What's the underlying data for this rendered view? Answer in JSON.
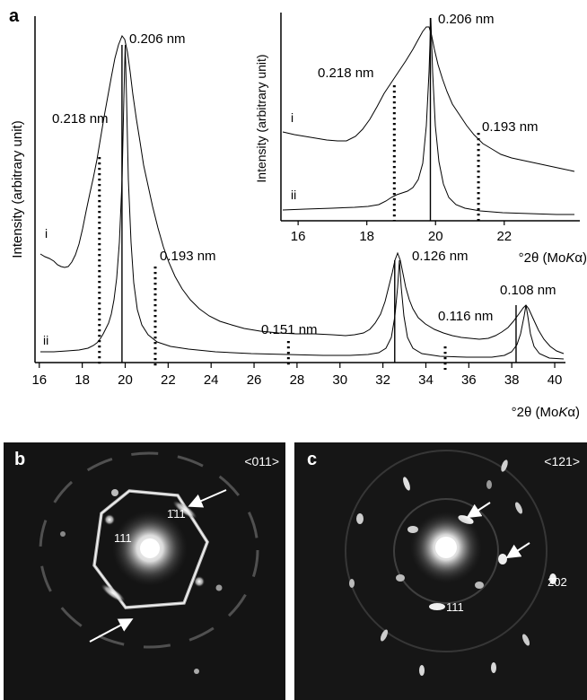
{
  "panel_labels": {
    "a": "a",
    "b": "b",
    "c": "c"
  },
  "chart_data": [
    {
      "type": "line",
      "panel": "a",
      "xlabel": "°2θ (MoKα)",
      "ylabel": "Intensity (arbitrary unit)",
      "xlim": [
        15.8,
        40.5
      ],
      "x_ticks": [
        16,
        18,
        20,
        22,
        24,
        26,
        28,
        30,
        32,
        34,
        36,
        38,
        40
      ],
      "series": [
        {
          "name": "i"
        },
        {
          "name": "ii"
        }
      ],
      "peaks": [
        {
          "x": 18.8,
          "label": "0.218 nm",
          "marker": "dotted"
        },
        {
          "x": 19.85,
          "label": "0.206 nm",
          "marker": "solid"
        },
        {
          "x": 21.4,
          "label": "0.193 nm",
          "marker": "dotted"
        },
        {
          "x": 27.6,
          "label": "0.151 nm",
          "marker": "dotted"
        },
        {
          "x": 32.55,
          "label": "0.126 nm",
          "marker": "solid"
        },
        {
          "x": 34.9,
          "label": "0.116 nm",
          "marker": "dotted"
        },
        {
          "x": 38.2,
          "label": "0.108 nm",
          "marker": "solid"
        }
      ]
    },
    {
      "type": "line",
      "panel": "a-inset",
      "xlabel": "°2θ (MoKα)",
      "ylabel": "Intensity (arbitrary unit)",
      "xlim": [
        15.5,
        24.2
      ],
      "x_ticks": [
        16,
        18,
        20,
        22
      ],
      "series": [
        {
          "name": "i"
        },
        {
          "name": "ii"
        }
      ],
      "peaks": [
        {
          "x": 18.8,
          "label": "0.218 nm",
          "marker": "dotted"
        },
        {
          "x": 19.85,
          "label": "0.206 nm",
          "marker": "solid"
        },
        {
          "x": 21.25,
          "label": "0.193 nm",
          "marker": "dotted"
        }
      ]
    }
  ],
  "diffraction": {
    "b": {
      "zone": "<011>",
      "spot_labels": [
        "1̄11",
        "111"
      ]
    },
    "c": {
      "zone": "<121>",
      "spot_labels": [
        "2̄02",
        "111"
      ]
    }
  }
}
